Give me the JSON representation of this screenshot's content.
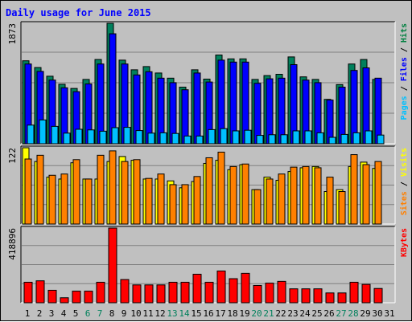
{
  "title": "Daily usage for June 2015",
  "chart_data": [
    {
      "type": "bar",
      "panel": "hits-files-pages",
      "max_label": "1873",
      "ylim": [
        0,
        1873
      ],
      "grid": true,
      "right_label": [
        {
          "text": "Pages",
          "color": "#00c0ff"
        },
        {
          "text": " / ",
          "color": "#000000"
        },
        {
          "text": "Files",
          "color": "#0000ff"
        },
        {
          "text": " / ",
          "color": "#000000"
        },
        {
          "text": "Hits",
          "color": "#008040"
        }
      ],
      "categories": [
        "1",
        "2",
        "3",
        "4",
        "5",
        "6",
        "7",
        "8",
        "9",
        "10",
        "11",
        "12",
        "13",
        "14",
        "15",
        "16",
        "17",
        "18",
        "19",
        "20",
        "21",
        "22",
        "23",
        "24",
        "25",
        "26",
        "27",
        "28",
        "29",
        "30",
        "31"
      ],
      "series": [
        {
          "name": "Hits",
          "color": "#00805c",
          "values": [
            1290,
            1185,
            1050,
            925,
            860,
            1000,
            1310,
            1873,
            1300,
            1150,
            1200,
            1100,
            1020,
            880,
            1150,
            1005,
            1380,
            1320,
            1320,
            1000,
            1060,
            1080,
            1350,
            1040,
            1000,
            690,
            920,
            1240,
            1310,
            1000,
            0
          ]
        },
        {
          "name": "Files",
          "color": "#0000ff",
          "values": [
            1240,
            1125,
            990,
            870,
            810,
            930,
            1240,
            1710,
            1240,
            1070,
            1120,
            1020,
            950,
            840,
            1100,
            960,
            1300,
            1270,
            1270,
            940,
            1010,
            1020,
            1230,
            990,
            950,
            680,
            880,
            1140,
            1180,
            1020,
            0
          ]
        },
        {
          "name": "Pages",
          "color": "#00c0ff",
          "values": [
            290,
            370,
            270,
            165,
            225,
            215,
            195,
            250,
            255,
            205,
            165,
            170,
            160,
            120,
            120,
            220,
            235,
            200,
            210,
            130,
            140,
            140,
            200,
            200,
            170,
            100,
            145,
            170,
            200,
            135,
            0
          ]
        }
      ]
    },
    {
      "type": "bar",
      "panel": "visits-sites",
      "max_label": "122",
      "ylim": [
        0,
        122
      ],
      "grid": true,
      "right_label": [
        {
          "text": "Sites",
          "color": "#ff8000"
        },
        {
          "text": " / ",
          "color": "#000000"
        },
        {
          "text": "Visits",
          "color": "#ffff00"
        }
      ],
      "categories": [
        "1",
        "2",
        "3",
        "4",
        "5",
        "6",
        "7",
        "8",
        "9",
        "10",
        "11",
        "12",
        "13",
        "14",
        "15",
        "16",
        "17",
        "18",
        "19",
        "20",
        "21",
        "22",
        "23",
        "24",
        "25",
        "26",
        "27",
        "28",
        "29",
        "30",
        "31"
      ],
      "series": [
        {
          "name": "Visits",
          "color": "#ffff00",
          "values": [
            122,
            100,
            75,
            72,
            98,
            72,
            72,
            100,
            108,
            102,
            72,
            72,
            69,
            58,
            68,
            97,
            102,
            87,
            95,
            55,
            75,
            70,
            84,
            90,
            92,
            52,
            55,
            92,
            99,
            89,
            0
          ]
        },
        {
          "name": "Sites",
          "color": "#ff8000",
          "values": [
            104,
            110,
            78,
            80,
            103,
            72,
            110,
            117,
            100,
            103,
            73,
            80,
            63,
            63,
            76,
            106,
            115,
            92,
            96,
            55,
            72,
            80,
            91,
            92,
            90,
            75,
            52,
            111,
            95,
            100,
            0
          ]
        }
      ]
    },
    {
      "type": "bar",
      "panel": "kbytes",
      "max_label": "418896",
      "ylim": [
        0,
        418896
      ],
      "grid": true,
      "right_label": [
        {
          "text": "KBytes",
          "color": "#ff0000"
        }
      ],
      "categories": [
        "1",
        "2",
        "3",
        "4",
        "5",
        "6",
        "7",
        "8",
        "9",
        "10",
        "11",
        "12",
        "13",
        "14",
        "15",
        "16",
        "17",
        "18",
        "19",
        "20",
        "21",
        "22",
        "23",
        "24",
        "25",
        "26",
        "27",
        "28",
        "29",
        "30",
        "31"
      ],
      "series": [
        {
          "name": "KBytes",
          "color": "#ff0000",
          "values": [
            115000,
            123000,
            70000,
            28000,
            65000,
            65000,
            115000,
            418896,
            130000,
            100000,
            100000,
            100000,
            115000,
            115000,
            160000,
            115000,
            178000,
            135000,
            165000,
            97000,
            110000,
            120000,
            78000,
            78000,
            78000,
            55000,
            55000,
            115000,
            103000,
            80000,
            0
          ]
        }
      ]
    }
  ],
  "x_labels": [
    {
      "text": "1",
      "color": "#000000"
    },
    {
      "text": "2",
      "color": "#000000"
    },
    {
      "text": "3",
      "color": "#000000"
    },
    {
      "text": "4",
      "color": "#000000"
    },
    {
      "text": "5",
      "color": "#000000"
    },
    {
      "text": "6",
      "color": "#00805c"
    },
    {
      "text": "7",
      "color": "#00805c"
    },
    {
      "text": "8",
      "color": "#000000"
    },
    {
      "text": "9",
      "color": "#000000"
    },
    {
      "text": "10",
      "color": "#000000"
    },
    {
      "text": "11",
      "color": "#000000"
    },
    {
      "text": "12",
      "color": "#000000"
    },
    {
      "text": "13",
      "color": "#00805c"
    },
    {
      "text": "14",
      "color": "#00805c"
    },
    {
      "text": "15",
      "color": "#000000"
    },
    {
      "text": "16",
      "color": "#000000"
    },
    {
      "text": "17",
      "color": "#000000"
    },
    {
      "text": "18",
      "color": "#000000"
    },
    {
      "text": "19",
      "color": "#000000"
    },
    {
      "text": "20",
      "color": "#00805c"
    },
    {
      "text": "21",
      "color": "#00805c"
    },
    {
      "text": "22",
      "color": "#000000"
    },
    {
      "text": "23",
      "color": "#000000"
    },
    {
      "text": "24",
      "color": "#000000"
    },
    {
      "text": "25",
      "color": "#000000"
    },
    {
      "text": "26",
      "color": "#000000"
    },
    {
      "text": "27",
      "color": "#00805c"
    },
    {
      "text": "28",
      "color": "#00805c"
    },
    {
      "text": "29",
      "color": "#000000"
    },
    {
      "text": "30",
      "color": "#000000"
    },
    {
      "text": "31",
      "color": "#000000"
    }
  ]
}
